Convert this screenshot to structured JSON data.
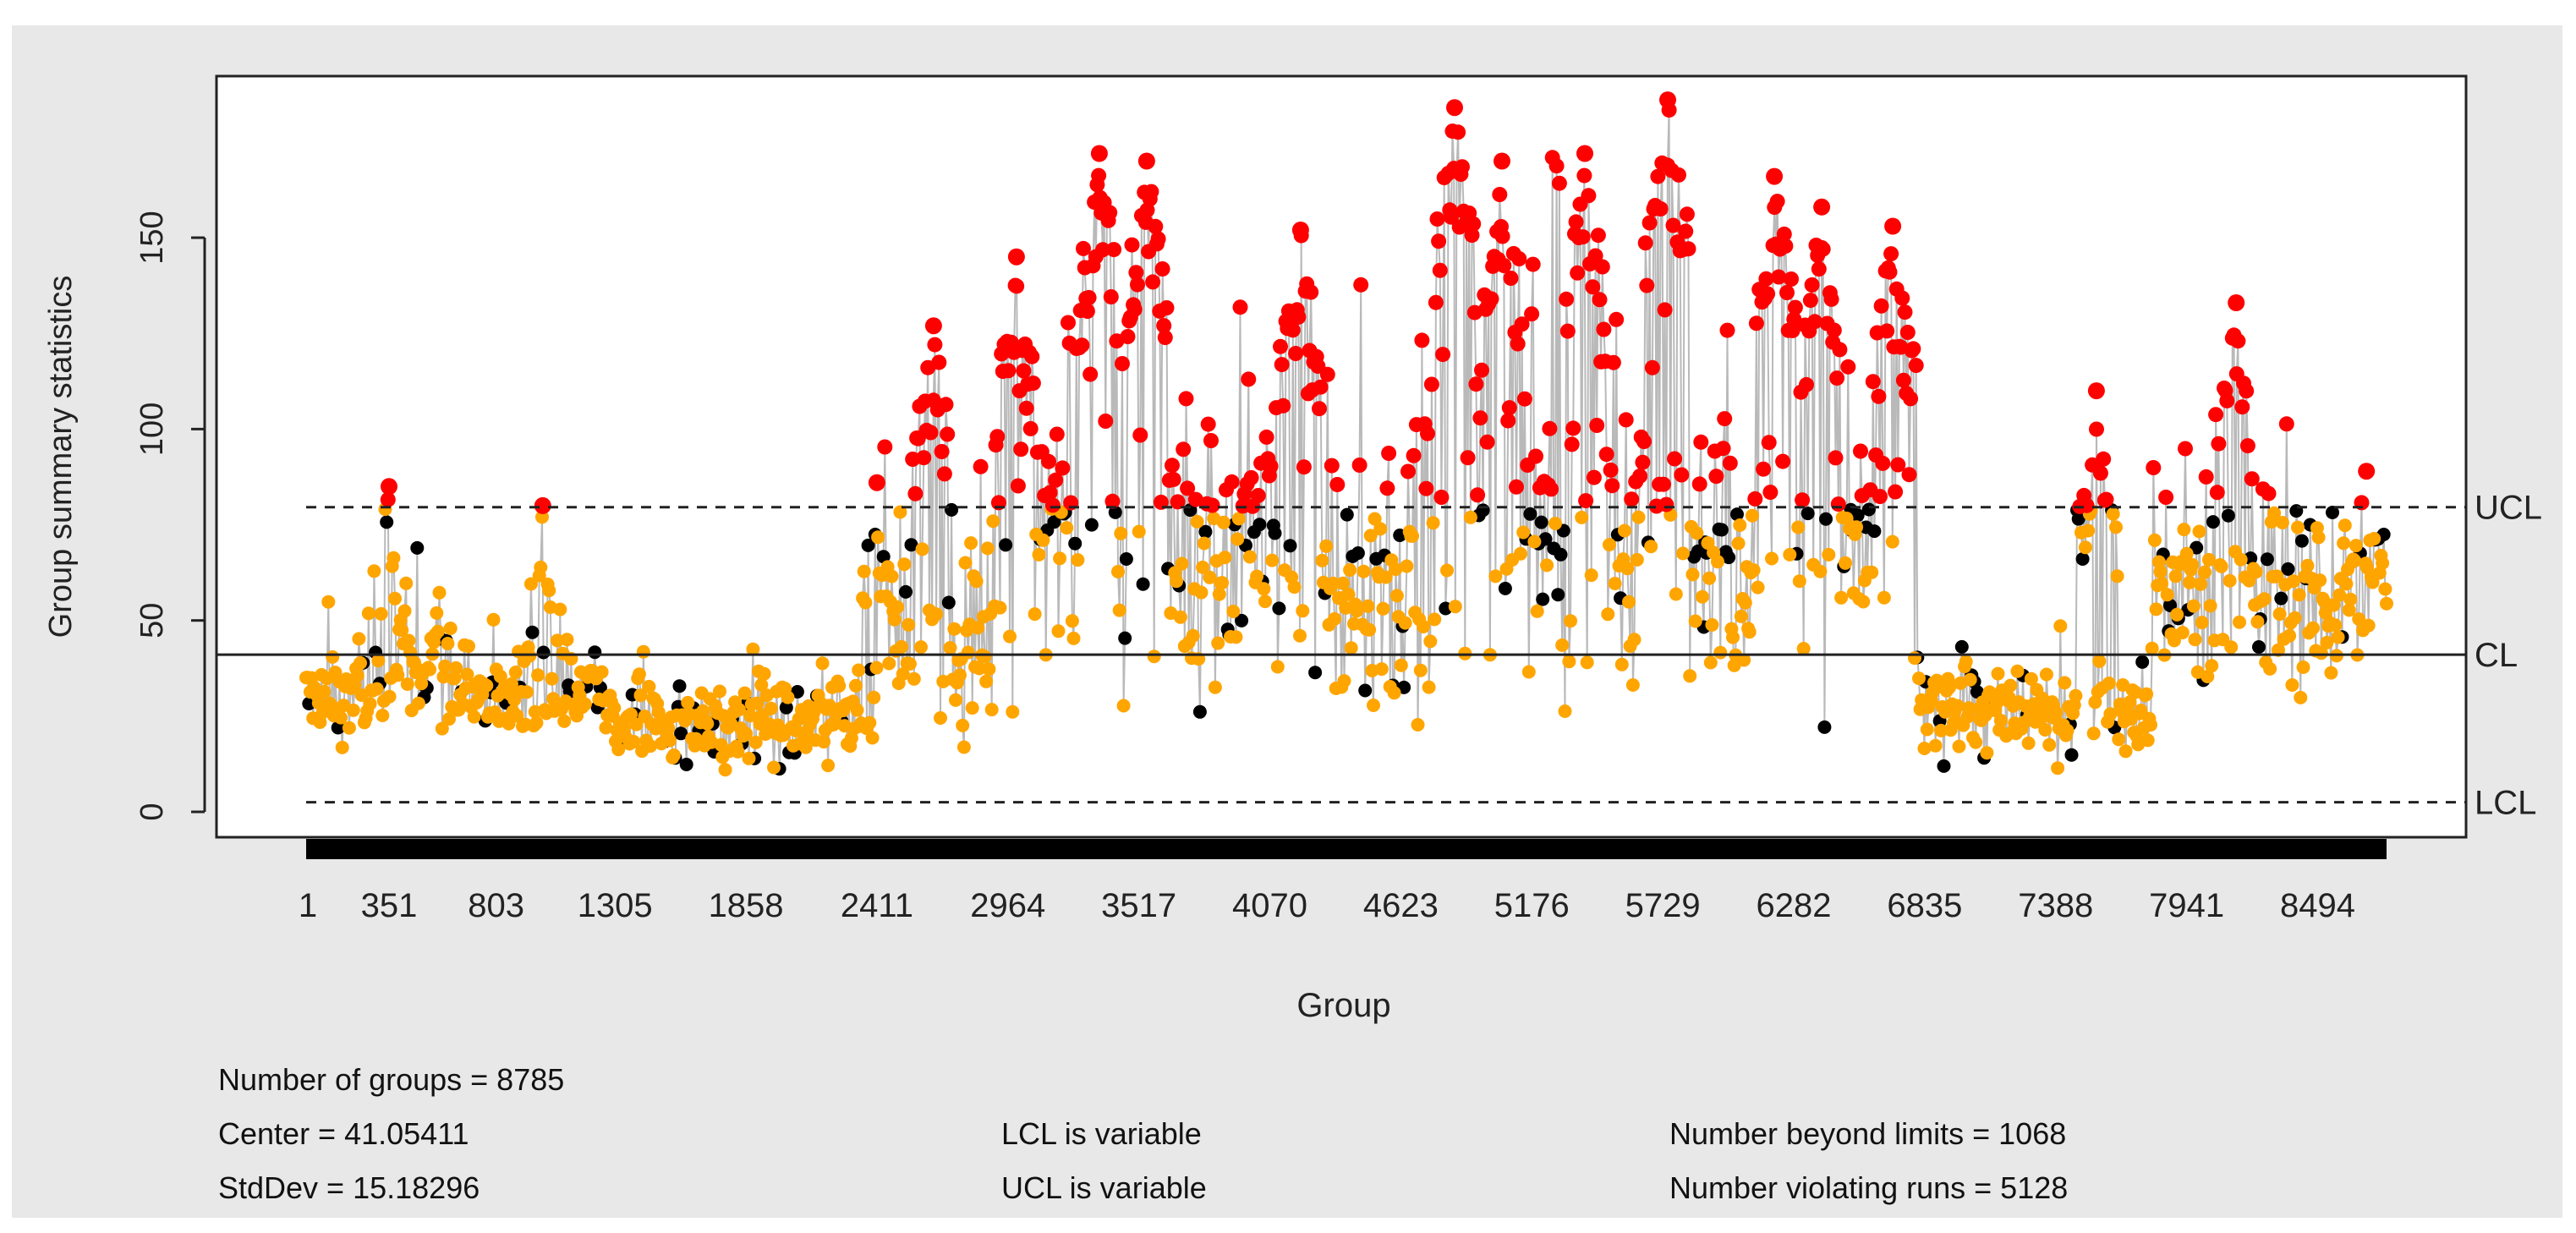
{
  "chart_data": {
    "type": "scatter",
    "subtype": "xbar-control-chart",
    "ylabel": "Group summary statistics",
    "xlabel": "Group",
    "ylim": [
      0,
      190
    ],
    "y_ticks": [
      0,
      50,
      100,
      150
    ],
    "x_range": [
      1,
      8785
    ],
    "x_tick_labels": [
      "1",
      "351",
      "803",
      "1305",
      "1858",
      "2411",
      "2964",
      "3517",
      "4070",
      "4623",
      "5176",
      "5729",
      "6282",
      "6835",
      "7388",
      "7941",
      "8494"
    ],
    "x_tick_values": [
      1,
      351,
      803,
      1305,
      1858,
      2411,
      2964,
      3517,
      4070,
      4623,
      5176,
      5729,
      6282,
      6835,
      7388,
      7941,
      8494
    ],
    "limits": {
      "UCL": 79.6,
      "CL": 41.05411,
      "LCL": 2.5
    },
    "limit_labels": {
      "UCL": "UCL",
      "CL": "CL",
      "LCL": "LCL"
    },
    "colors": {
      "in_control": "#000000",
      "violating_run": "#ffa500",
      "beyond_limits": "#ff0000",
      "grey_line": "#808080"
    },
    "approx_segment_levels": [
      {
        "x_start": 1,
        "x_end": 300,
        "level": 30,
        "spread": 12
      },
      {
        "x_start": 300,
        "x_end": 700,
        "level": 35,
        "spread": 15
      },
      {
        "x_start": 700,
        "x_end": 1300,
        "level": 30,
        "spread": 12
      },
      {
        "x_start": 1300,
        "x_end": 2400,
        "level": 22,
        "spread": 12
      },
      {
        "x_start": 2400,
        "x_end": 3000,
        "level": 45,
        "spread": 30
      },
      {
        "x_start": 3000,
        "x_end": 4100,
        "level": 70,
        "spread": 45
      },
      {
        "x_start": 4100,
        "x_end": 4700,
        "level": 55,
        "spread": 40
      },
      {
        "x_start": 4700,
        "x_end": 5800,
        "level": 75,
        "spread": 50
      },
      {
        "x_start": 5800,
        "x_end": 6800,
        "level": 70,
        "spread": 40
      },
      {
        "x_start": 6800,
        "x_end": 7800,
        "level": 25,
        "spread": 12
      },
      {
        "x_start": 7800,
        "x_end": 8785,
        "level": 55,
        "spread": 30
      }
    ],
    "approx_peaks": [
      {
        "x": 351,
        "y": 85
      },
      {
        "x": 1000,
        "y": 80
      },
      {
        "x": 2411,
        "y": 86
      },
      {
        "x": 2650,
        "y": 127
      },
      {
        "x": 3000,
        "y": 145
      },
      {
        "x": 3350,
        "y": 172
      },
      {
        "x": 3550,
        "y": 170
      },
      {
        "x": 4200,
        "y": 152
      },
      {
        "x": 4850,
        "y": 184
      },
      {
        "x": 5050,
        "y": 170
      },
      {
        "x": 5400,
        "y": 172
      },
      {
        "x": 5750,
        "y": 186
      },
      {
        "x": 6200,
        "y": 166
      },
      {
        "x": 6400,
        "y": 158
      },
      {
        "x": 6700,
        "y": 153
      },
      {
        "x": 7560,
        "y": 110
      },
      {
        "x": 8150,
        "y": 133
      },
      {
        "x": 8700,
        "y": 89
      }
    ]
  },
  "stats": {
    "n_groups": "Number of groups = 8785",
    "center": "Center = 41.05411",
    "stddev": "StdDev = 15.18296",
    "lcl_note": "LCL is variable",
    "ucl_note": "UCL is variable",
    "beyond": "Number beyond limits = 1068",
    "violating": "Number violating runs = 5128"
  }
}
